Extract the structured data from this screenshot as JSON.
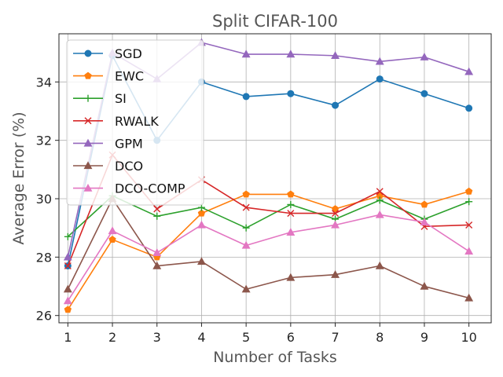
{
  "chart_data": {
    "type": "line",
    "title": "Split CIFAR-100",
    "xlabel": "Number of Tasks",
    "ylabel": "Average Error (%)",
    "x": [
      1,
      2,
      3,
      4,
      5,
      6,
      7,
      8,
      9,
      10
    ],
    "xticks": [
      "1",
      "2",
      "3",
      "4",
      "5",
      "6",
      "7",
      "8",
      "9",
      "10"
    ],
    "yticks": [
      "26",
      "28",
      "30",
      "32",
      "34"
    ],
    "ylim": [
      25.75,
      35.65
    ],
    "grid": true,
    "legend_position": "top-left",
    "series": [
      {
        "name": "SGD",
        "color": "#1f77b4",
        "marker": "circle",
        "values": [
          27.7,
          34.9,
          32.0,
          34.0,
          33.5,
          33.6,
          33.2,
          34.1,
          33.6,
          33.1
        ]
      },
      {
        "name": "EWC",
        "color": "#ff7f0e",
        "marker": "pentagon",
        "values": [
          26.2,
          28.6,
          28.0,
          29.5,
          30.15,
          30.15,
          29.65,
          30.1,
          29.8,
          30.25
        ]
      },
      {
        "name": "SI",
        "color": "#2ca02c",
        "marker": "plus",
        "values": [
          28.7,
          30.1,
          29.4,
          29.7,
          29.0,
          29.8,
          29.3,
          29.95,
          29.3,
          29.9
        ]
      },
      {
        "name": "RWALK",
        "color": "#d62728",
        "marker": "x",
        "values": [
          27.7,
          31.5,
          29.65,
          30.65,
          29.7,
          29.5,
          29.5,
          30.25,
          29.05,
          29.1
        ]
      },
      {
        "name": "GPM",
        "color": "#9467bd",
        "marker": "triangle",
        "values": [
          28.0,
          35.0,
          34.1,
          35.35,
          34.95,
          34.95,
          34.9,
          34.7,
          34.85,
          34.35
        ]
      },
      {
        "name": "DCO",
        "color": "#8c564b",
        "marker": "triangle",
        "values": [
          26.9,
          30.0,
          27.7,
          27.85,
          26.9,
          27.3,
          27.4,
          27.7,
          27.0,
          26.6
        ]
      },
      {
        "name": "DCO-COMP",
        "color": "#e377c2",
        "marker": "triangle",
        "values": [
          26.5,
          28.9,
          28.15,
          29.1,
          28.4,
          28.85,
          29.1,
          29.45,
          29.2,
          28.2
        ]
      }
    ]
  }
}
